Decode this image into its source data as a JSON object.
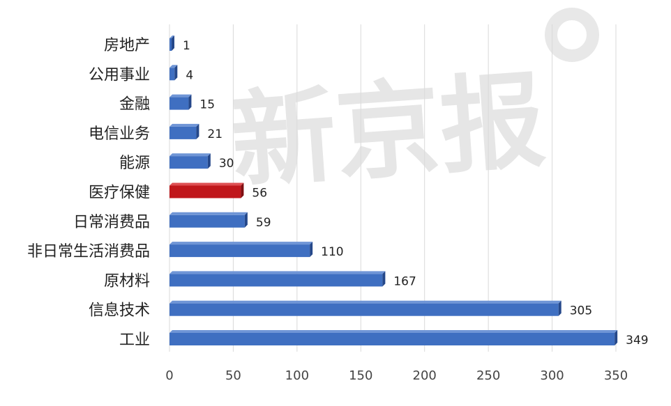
{
  "chart_data": {
    "type": "bar",
    "orientation": "horizontal",
    "categories": [
      "房地产",
      "公用事业",
      "金融",
      "电信业务",
      "能源",
      "医疗保健",
      "日常消费品",
      "非日常生活消费品",
      "原材料",
      "信息技术",
      "工业"
    ],
    "values": [
      1,
      4,
      15,
      21,
      30,
      56,
      59,
      110,
      167,
      305,
      349
    ],
    "highlight_index": 5,
    "xlim": [
      0,
      350
    ],
    "x_ticks": [
      0,
      50,
      100,
      150,
      200,
      250,
      300,
      350
    ],
    "grid": "vertical",
    "data_labels": true,
    "bar_style": "3d",
    "title": "",
    "xlabel": "",
    "ylabel": ""
  },
  "colors": {
    "bar": "#3f6fc1",
    "bar_dark": "#25488a",
    "bar_top": "#6f95d6",
    "highlight": "#c0171b",
    "highlight_dark": "#7e0e11",
    "highlight_top": "#de5053",
    "grid": "#d9d9d9",
    "watermark": "#e6e6e6"
  },
  "watermark_text": "新京报"
}
